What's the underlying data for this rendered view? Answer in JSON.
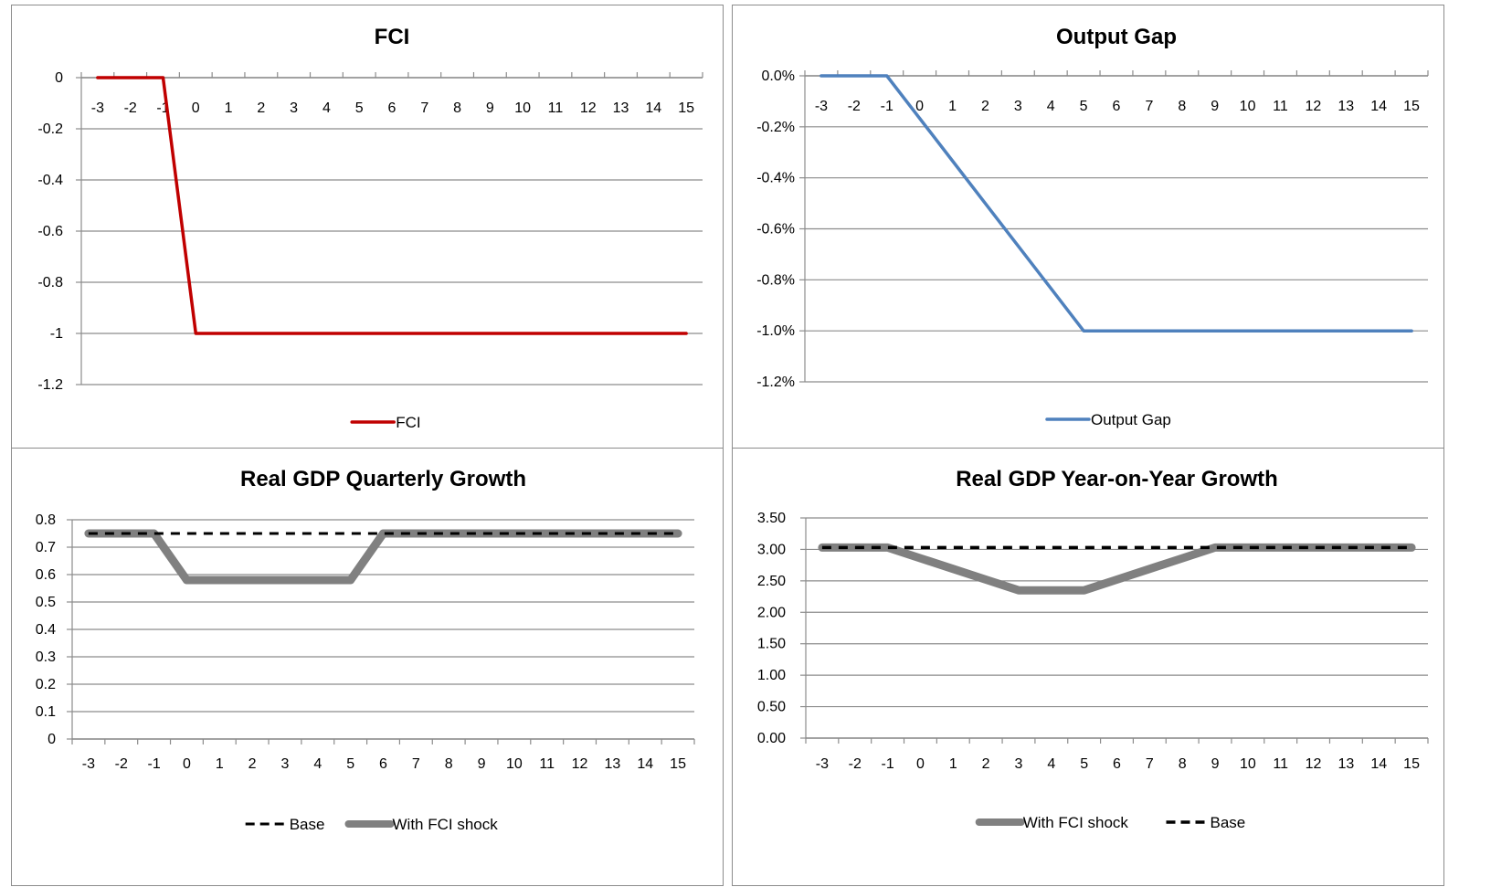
{
  "chart_data": [
    {
      "id": "fci",
      "type": "line",
      "title": "FCI",
      "x": [
        -3,
        -2,
        -1,
        0,
        1,
        2,
        3,
        4,
        5,
        6,
        7,
        8,
        9,
        10,
        11,
        12,
        13,
        14,
        15
      ],
      "ylim": [
        -1.2,
        0
      ],
      "yticks": [
        "0",
        "-0.2",
        "-0.4",
        "-0.6",
        "-0.8",
        "-1",
        "-1.2"
      ],
      "ytick_values": [
        0,
        -0.2,
        -0.4,
        -0.6,
        -0.8,
        -1,
        -1.2
      ],
      "x_axis_at": 0,
      "grid": true,
      "legend_position": "bottom",
      "series": [
        {
          "name": "FCI",
          "color": "#c00000",
          "dash": "solid",
          "width": 3.5,
          "values": [
            0,
            0,
            0,
            -1,
            -1,
            -1,
            -1,
            -1,
            -1,
            -1,
            -1,
            -1,
            -1,
            -1,
            -1,
            -1,
            -1,
            -1,
            -1
          ]
        }
      ]
    },
    {
      "id": "output-gap",
      "type": "line",
      "title": "Output Gap",
      "x": [
        -3,
        -2,
        -1,
        0,
        1,
        2,
        3,
        4,
        5,
        6,
        7,
        8,
        9,
        10,
        11,
        12,
        13,
        14,
        15
      ],
      "ylim": [
        -1.2,
        0
      ],
      "yticks": [
        "0.0%",
        "-0.2%",
        "-0.4%",
        "-0.6%",
        "-0.8%",
        "-1.0%",
        "-1.2%"
      ],
      "ytick_values": [
        0,
        -0.2,
        -0.4,
        -0.6,
        -0.8,
        -1,
        -1.2
      ],
      "x_axis_at": 0,
      "grid": true,
      "legend_position": "bottom",
      "series": [
        {
          "name": "Output Gap",
          "color": "#4f81bd",
          "dash": "solid",
          "width": 3.5,
          "values": [
            0,
            0,
            0,
            -0.1667,
            -0.3333,
            -0.5,
            -0.6667,
            -0.8333,
            -1,
            -1,
            -1,
            -1,
            -1,
            -1,
            -1,
            -1,
            -1,
            -1,
            -1
          ]
        }
      ]
    },
    {
      "id": "gdp-quarterly",
      "type": "line",
      "title": "Real GDP Quarterly Growth",
      "x": [
        -3,
        -2,
        -1,
        0,
        1,
        2,
        3,
        4,
        5,
        6,
        7,
        8,
        9,
        10,
        11,
        12,
        13,
        14,
        15
      ],
      "ylim": [
        0,
        0.8
      ],
      "yticks": [
        "0.8",
        "0.7",
        "0.6",
        "0.5",
        "0.4",
        "0.3",
        "0.2",
        "0.1",
        "0"
      ],
      "ytick_values": [
        0.8,
        0.7,
        0.6,
        0.5,
        0.4,
        0.3,
        0.2,
        0.1,
        0
      ],
      "x_axis_at": 0,
      "grid": true,
      "legend_position": "bottom",
      "series": [
        {
          "name": "With FCI shock",
          "color": "#808080",
          "dash": "solid",
          "width": 9,
          "values": [
            0.75,
            0.75,
            0.75,
            0.58,
            0.58,
            0.58,
            0.58,
            0.58,
            0.58,
            0.75,
            0.75,
            0.75,
            0.75,
            0.75,
            0.75,
            0.75,
            0.75,
            0.75,
            0.75
          ]
        },
        {
          "name": "Base",
          "color": "#000000",
          "dash": "dashed",
          "width": 3,
          "values": [
            0.75,
            0.75,
            0.75,
            0.75,
            0.75,
            0.75,
            0.75,
            0.75,
            0.75,
            0.75,
            0.75,
            0.75,
            0.75,
            0.75,
            0.75,
            0.75,
            0.75,
            0.75,
            0.75
          ]
        }
      ],
      "legend_order": [
        "Base",
        "With FCI shock"
      ]
    },
    {
      "id": "gdp-yoy",
      "type": "line",
      "title": "Real GDP Year-on-Year Growth",
      "x": [
        -3,
        -2,
        -1,
        0,
        1,
        2,
        3,
        4,
        5,
        6,
        7,
        8,
        9,
        10,
        11,
        12,
        13,
        14,
        15
      ],
      "ylim": [
        0,
        3.5
      ],
      "yticks": [
        "3.50",
        "3.00",
        "2.50",
        "2.00",
        "1.50",
        "1.00",
        "0.50",
        "0.00"
      ],
      "ytick_values": [
        3.5,
        3.0,
        2.5,
        2.0,
        1.5,
        1.0,
        0.5,
        0
      ],
      "x_axis_at": 0,
      "grid": true,
      "legend_position": "bottom",
      "series": [
        {
          "name": "With FCI shock",
          "color": "#808080",
          "dash": "solid",
          "width": 9,
          "values": [
            3.03,
            3.03,
            3.03,
            2.86,
            2.69,
            2.52,
            2.35,
            2.35,
            2.35,
            2.52,
            2.69,
            2.86,
            3.03,
            3.03,
            3.03,
            3.03,
            3.03,
            3.03,
            3.03
          ]
        },
        {
          "name": "Base",
          "color": "#000000",
          "dash": "dashed",
          "width": 3.5,
          "values": [
            3.03,
            3.03,
            3.03,
            3.03,
            3.03,
            3.03,
            3.03,
            3.03,
            3.03,
            3.03,
            3.03,
            3.03,
            3.03,
            3.03,
            3.03,
            3.03,
            3.03,
            3.03,
            3.03
          ]
        }
      ],
      "legend_order": [
        "With FCI shock",
        "Base"
      ]
    }
  ]
}
